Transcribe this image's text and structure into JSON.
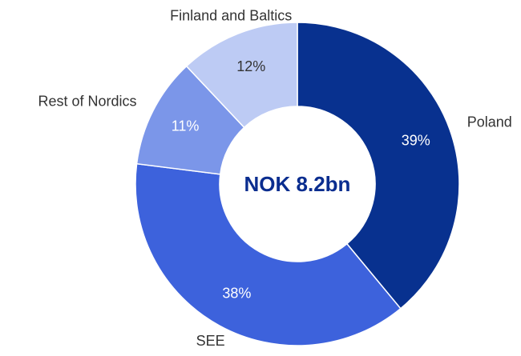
{
  "chart_data": {
    "type": "donut",
    "center_label": "NOK 8.2bn",
    "categories": [
      "Poland",
      "SEE",
      "Rest of Nordics",
      "Finland and Baltics"
    ],
    "values": [
      39,
      38,
      11,
      12
    ],
    "value_labels": [
      "39%",
      "38%",
      "11%",
      "12%"
    ],
    "colors": [
      "#08318f",
      "#3d62dc",
      "#7b96e9",
      "#bdcbf4"
    ]
  }
}
